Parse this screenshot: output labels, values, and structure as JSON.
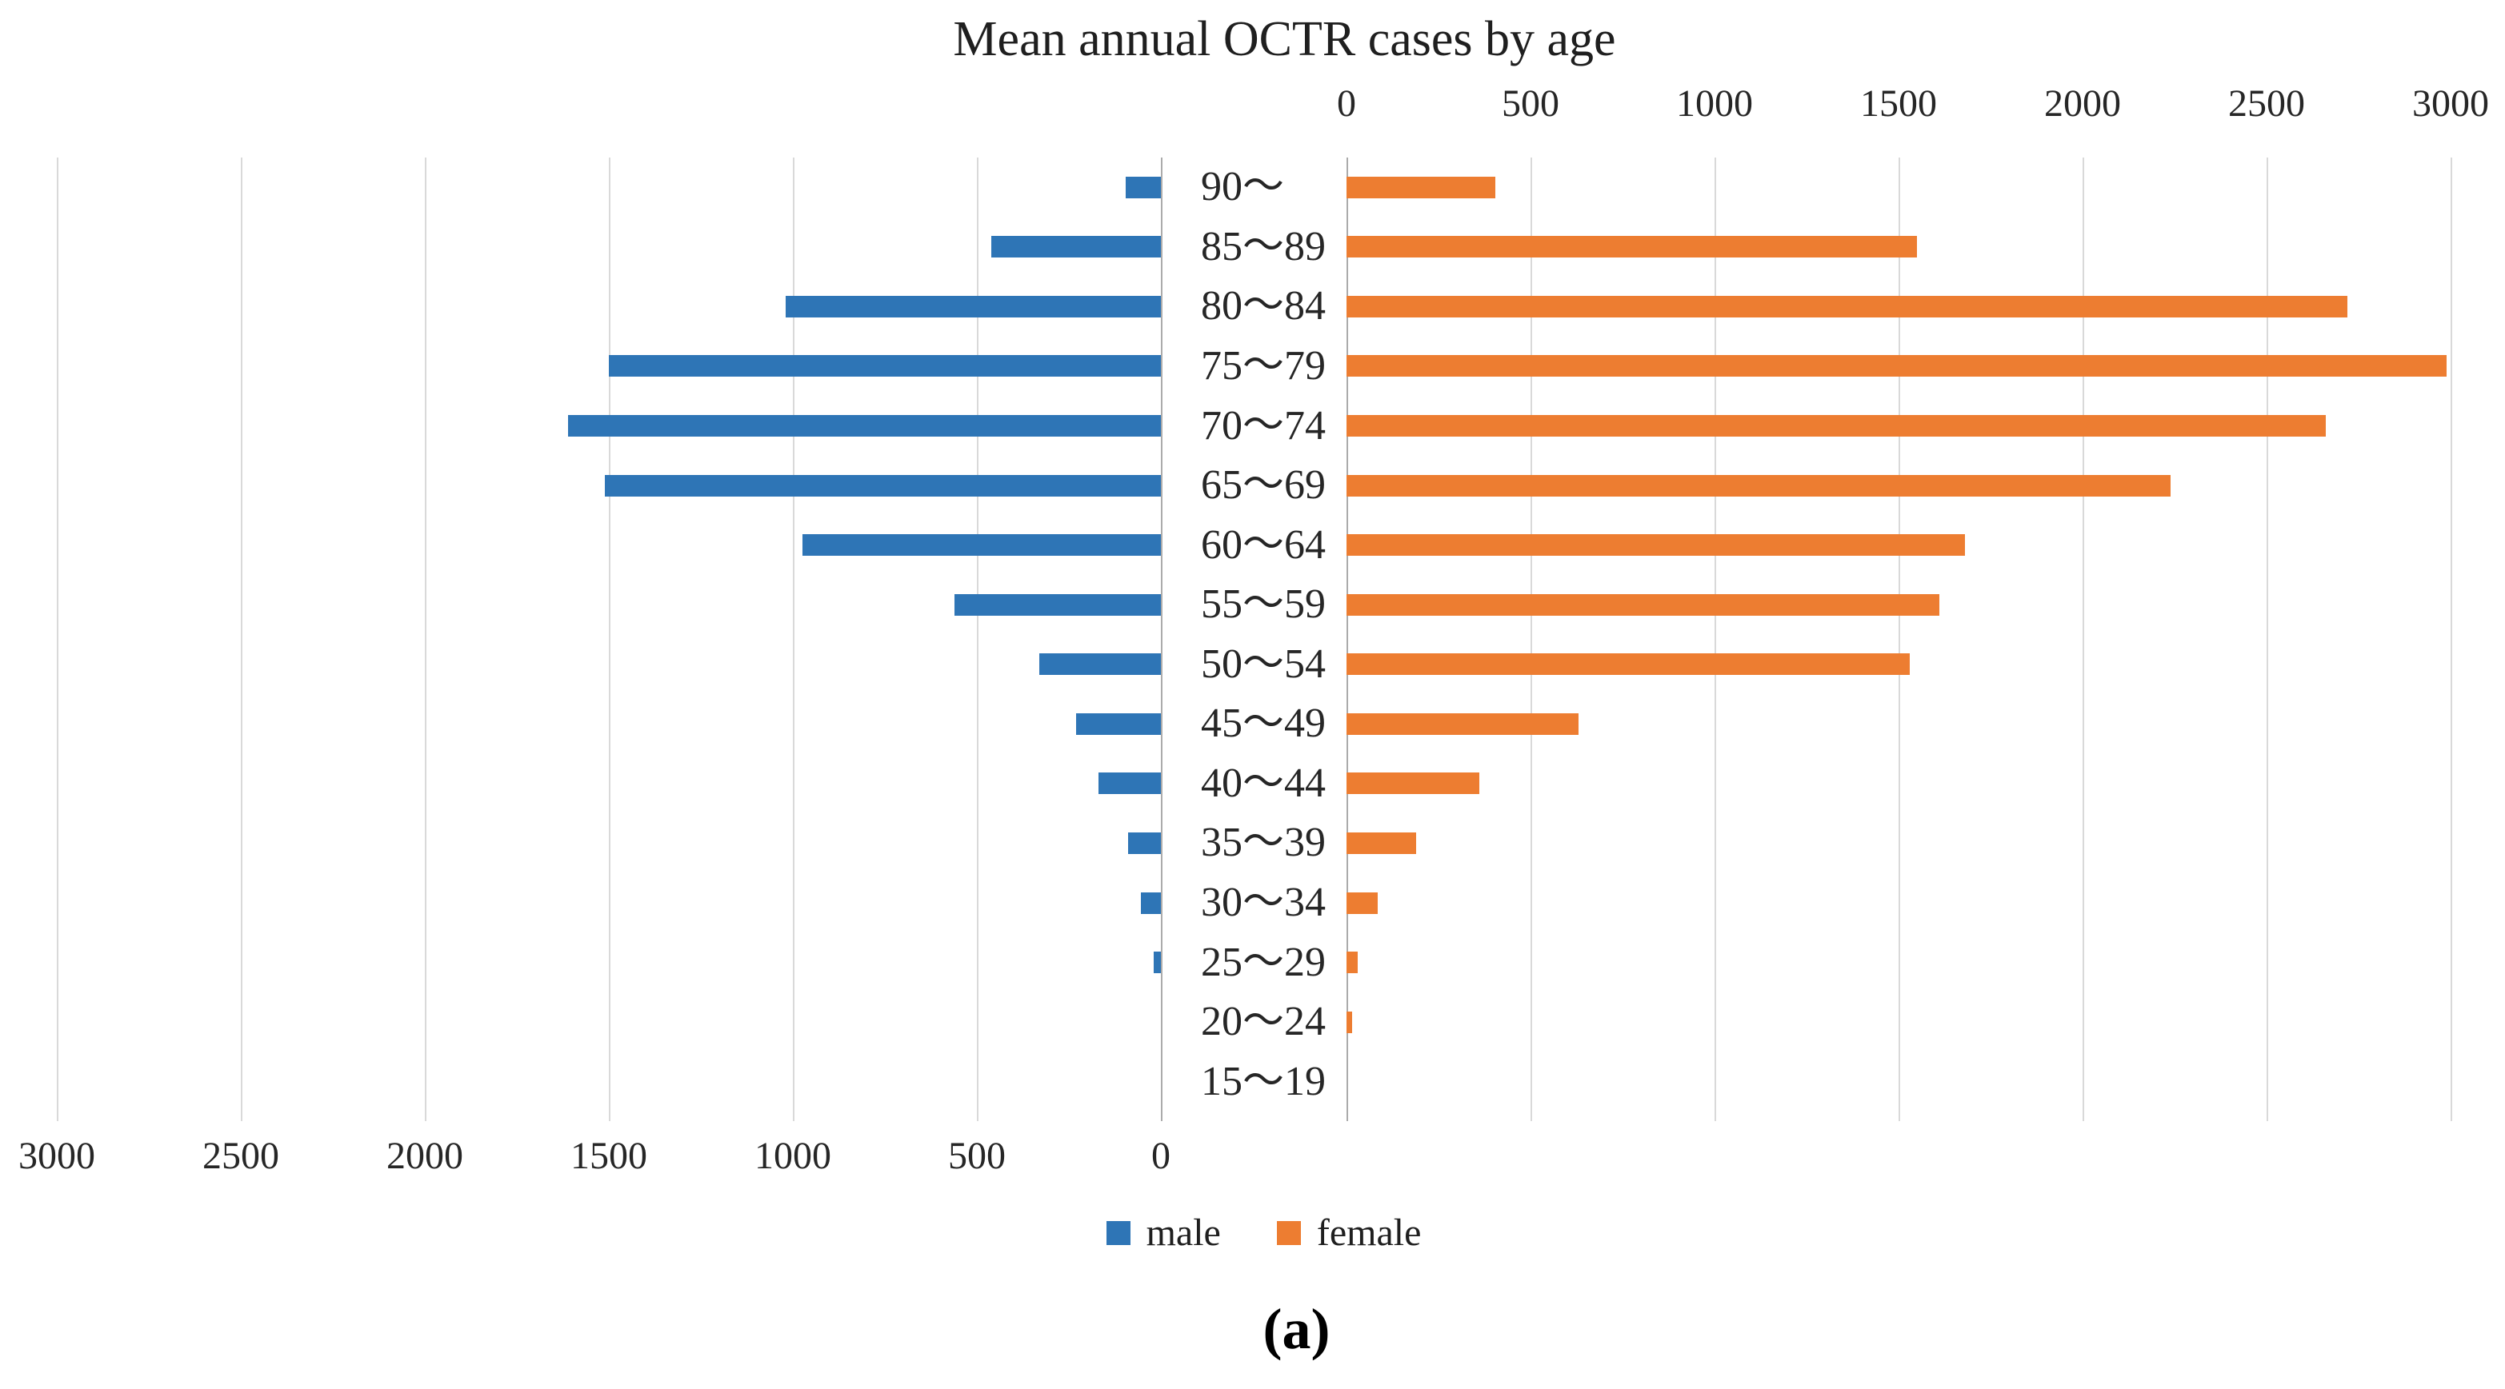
{
  "title": "Mean annual OCTR cases by age",
  "caption": "(a)",
  "legend": {
    "items": [
      {
        "label": "male",
        "color": "#2E75B6"
      },
      {
        "label": "female",
        "color": "#ED7D31"
      }
    ]
  },
  "colors": {
    "male": "#2E75B6",
    "female": "#ED7D31",
    "gridline": "#D9D9D9",
    "zero_axis": "#ABABAB",
    "text": "#262626"
  },
  "axes": {
    "top_ticks": [
      "0",
      "500",
      "1000",
      "1500",
      "2000",
      "2500",
      "3000"
    ],
    "bottom_ticks": [
      "3000",
      "2500",
      "2000",
      "1500",
      "1000",
      "500",
      "0"
    ],
    "tick_step": 500,
    "max": 3000
  },
  "chart_data": {
    "type": "bar",
    "subtype": "population-pyramid",
    "title": "Mean annual OCTR cases by age",
    "orientation": "horizontal",
    "categories": [
      "90〜",
      "85〜89",
      "80〜84",
      "75〜79",
      "70〜74",
      "65〜69",
      "60〜64",
      "55〜59",
      "50〜54",
      "45〜49",
      "40〜44",
      "35〜39",
      "30〜34",
      "25〜29",
      "20〜24",
      "15〜19"
    ],
    "series": [
      {
        "name": "male",
        "side": "left",
        "color": "#2E75B6",
        "values": [
          95,
          460,
          1020,
          1500,
          1610,
          1510,
          975,
          560,
          330,
          230,
          170,
          90,
          55,
          20,
          0,
          0
        ]
      },
      {
        "name": "female",
        "side": "right",
        "color": "#ED7D31",
        "values": [
          405,
          1550,
          2720,
          2990,
          2660,
          2240,
          1680,
          1610,
          1530,
          630,
          360,
          190,
          85,
          30,
          15,
          0
        ]
      }
    ],
    "xlim": [
      0,
      3000
    ],
    "tick_step": 500,
    "grid": true,
    "legend_position": "bottom"
  }
}
